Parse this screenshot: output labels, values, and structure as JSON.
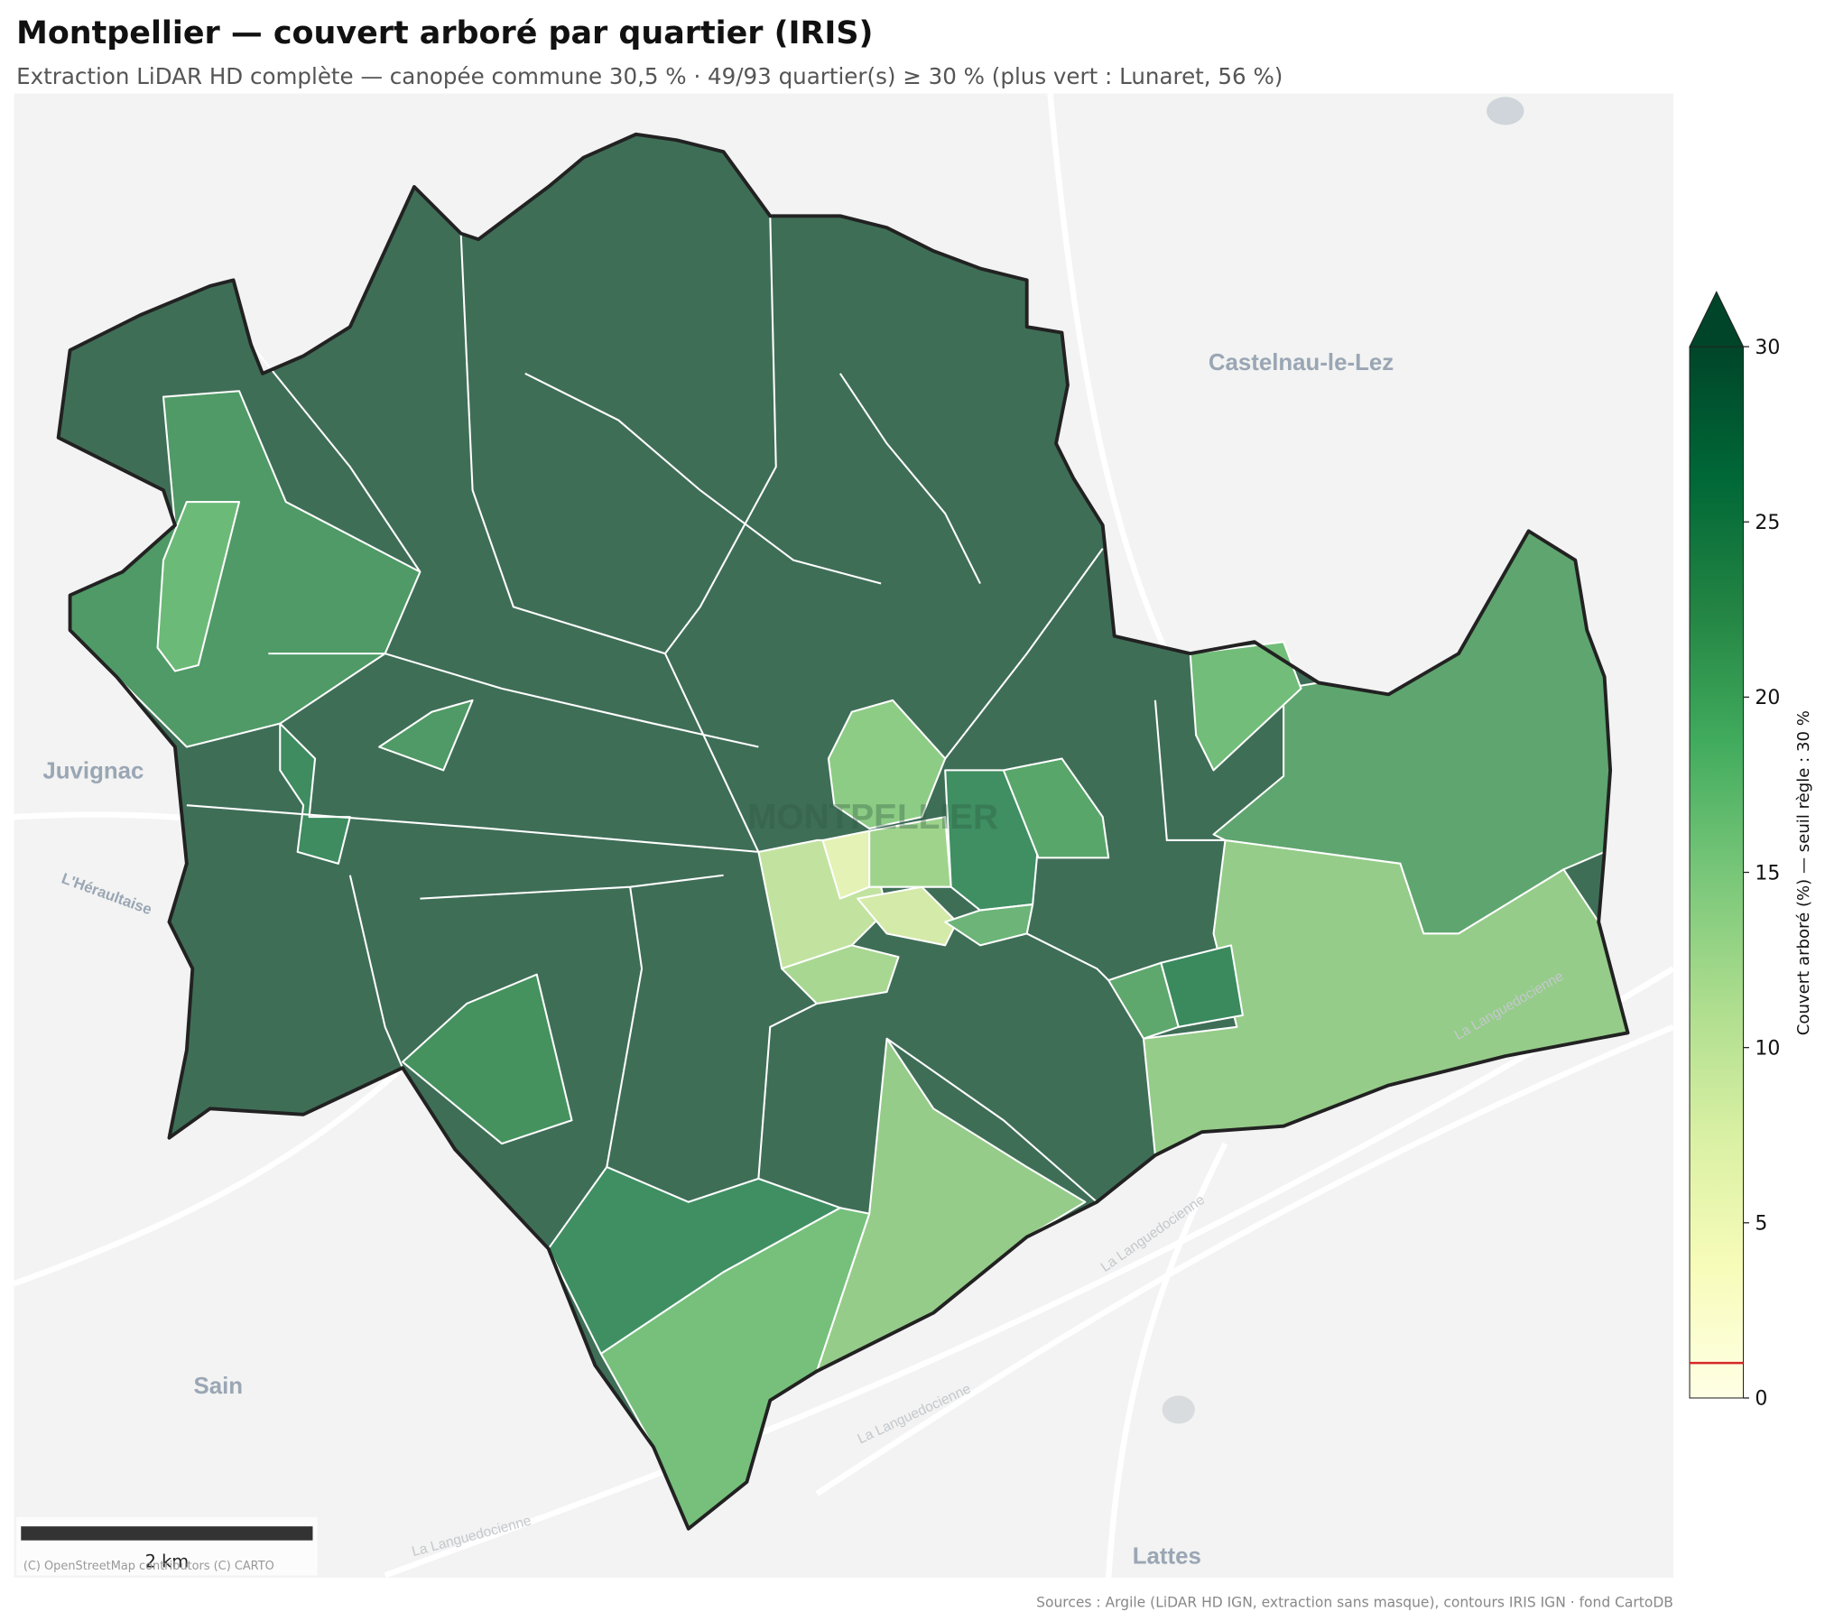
{
  "title": "Montpellier — couvert arboré par quartier (IRIS)",
  "subtitle": "Extraction LiDAR HD complète — canopée commune 30,5 % · 49/93 quartier(s) ≥ 30 % (plus vert : Lunaret, 56 %)",
  "place_labels": [
    "Castelnau-le-Lez",
    "Juvignac",
    "L'Héraultaise",
    "MONTPELLIER",
    "Sain",
    "Lattes",
    "La Languedocienne",
    "La Languedocienne",
    "La Languedocienne",
    "La Languedocienne"
  ],
  "colorbar": {
    "label": "Couvert arboré (%) — seuil règle : 30 %",
    "lim": [
      0,
      30
    ],
    "ticks": [
      0,
      5,
      10,
      15,
      20,
      25,
      30
    ],
    "threshold": 1,
    "threshold_color": "#d62728",
    "colors": [
      "#ffffe5",
      "#f7fcb9",
      "#d9f0a3",
      "#addd8e",
      "#78c679",
      "#41ab5d",
      "#238443",
      "#006837",
      "#004529"
    ]
  },
  "scale_bar": "2 km",
  "attribution": "(C) OpenStreetMap contributors (C) CARTO",
  "sources": "Sources : Argile (LiDAR HD IGN, extraction sans masque), contours IRIS IGN · fond CartoDB"
}
